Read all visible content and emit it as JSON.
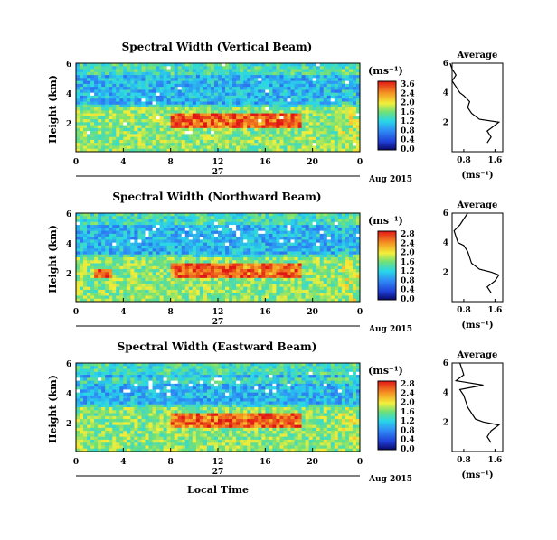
{
  "chart_data": [
    {
      "type": "heatmap",
      "title": "Spectral Width (Vertical Beam)",
      "ylabel": "Height (km)",
      "x_ticks": [
        "0",
        "4",
        "8",
        "12",
        "16",
        "20",
        "0"
      ],
      "x_range": [
        0,
        24
      ],
      "y_ticks": [
        "2",
        "4",
        "6"
      ],
      "y_range": [
        0,
        6
      ],
      "date_day": "27",
      "date_month_year": "Aug 2015",
      "colorbar": {
        "unit": "(ms⁻¹)",
        "ticks": [
          "3.6",
          "2.4",
          "2.0",
          "1.6",
          "1.2",
          "0.8",
          "0.4",
          "0.0"
        ]
      },
      "average_profile": {
        "title": "Average",
        "xlabel": "(ms⁻¹)",
        "x_ticks": [
          "0.8",
          "1.6"
        ],
        "y_ticks": [
          "2",
          "4",
          "6"
        ],
        "heights": [
          0.6,
          1.0,
          1.4,
          1.8,
          2.0,
          2.2,
          2.6,
          3.0,
          3.4,
          3.8,
          4.0,
          4.4,
          4.8,
          5.2,
          5.6,
          6.0
        ],
        "values": [
          1.4,
          1.5,
          1.4,
          1.6,
          1.7,
          1.2,
          1.0,
          0.9,
          0.95,
          0.8,
          0.7,
          0.6,
          0.5,
          0.6,
          0.5,
          0.45
        ]
      }
    },
    {
      "type": "heatmap",
      "title": "Spectral Width (Northward Beam)",
      "ylabel": "Height (km)",
      "x_ticks": [
        "0",
        "4",
        "8",
        "12",
        "16",
        "20",
        "0"
      ],
      "x_range": [
        0,
        24
      ],
      "y_ticks": [
        "2",
        "4",
        "6"
      ],
      "y_range": [
        0,
        6
      ],
      "date_day": "27",
      "date_month_year": "Aug 2015",
      "colorbar": {
        "unit": "(ms⁻¹)",
        "ticks": [
          "2.8",
          "2.4",
          "2.0",
          "1.6",
          "1.2",
          "0.8",
          "0.4",
          "0.0"
        ]
      },
      "average_profile": {
        "title": "Average",
        "xlabel": "(ms⁻¹)",
        "x_ticks": [
          "0.8",
          "1.6"
        ],
        "y_ticks": [
          "2",
          "4",
          "6"
        ],
        "heights": [
          0.6,
          1.0,
          1.4,
          1.8,
          2.0,
          2.2,
          2.6,
          3.0,
          3.4,
          3.8,
          4.0,
          4.4,
          4.8,
          5.2,
          5.6,
          6.0
        ],
        "values": [
          1.5,
          1.4,
          1.6,
          1.7,
          1.5,
          1.2,
          1.0,
          0.95,
          0.9,
          0.8,
          0.65,
          0.6,
          0.55,
          0.7,
          0.8,
          0.9
        ]
      }
    },
    {
      "type": "heatmap",
      "title": "Spectral Width (Eastward Beam)",
      "ylabel": "Height (km)",
      "xlabel": "Local Time",
      "x_ticks": [
        "0",
        "4",
        "8",
        "12",
        "16",
        "20",
        "0"
      ],
      "x_range": [
        0,
        24
      ],
      "y_ticks": [
        "2",
        "4",
        "6"
      ],
      "y_range": [
        0,
        6
      ],
      "date_day": "27",
      "date_month_year": "Aug 2015",
      "colorbar": {
        "unit": "(ms⁻¹)",
        "ticks": [
          "2.8",
          "2.4",
          "2.0",
          "1.6",
          "1.2",
          "0.8",
          "0.4",
          "0.0"
        ]
      },
      "average_profile": {
        "title": "Average",
        "xlabel": "(ms⁻¹)",
        "x_ticks": [
          "0.8",
          "1.6"
        ],
        "y_ticks": [
          "2",
          "4",
          "6"
        ],
        "heights": [
          0.6,
          1.0,
          1.4,
          1.8,
          2.0,
          2.2,
          2.6,
          3.0,
          3.4,
          3.8,
          4.2,
          4.5,
          4.8,
          5.2,
          5.6,
          6.0
        ],
        "values": [
          1.5,
          1.4,
          1.5,
          1.7,
          1.3,
          1.1,
          1.0,
          0.9,
          0.85,
          0.8,
          0.7,
          1.3,
          0.6,
          0.8,
          0.75,
          0.7
        ]
      }
    }
  ]
}
